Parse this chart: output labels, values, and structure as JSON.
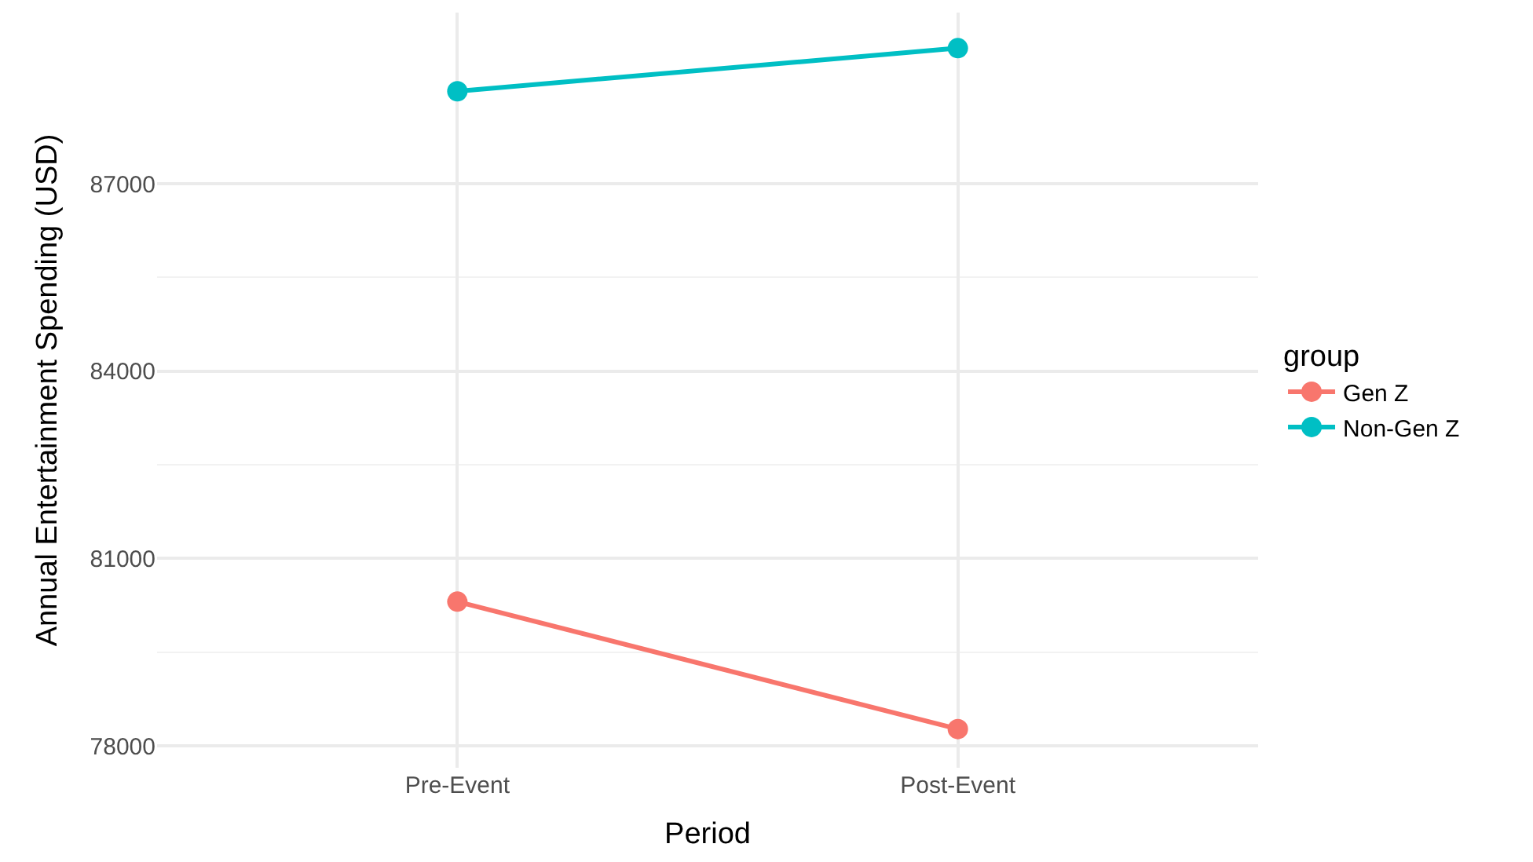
{
  "chart_data": {
    "type": "line",
    "xlabel": "Period",
    "ylabel": "Annual Entertainment Spending (USD)",
    "legend_title": "group",
    "categories": [
      "Pre-Event",
      "Post-Event"
    ],
    "series": [
      {
        "name": "Gen Z",
        "color": "#f8766d",
        "values": [
          80310,
          78270
        ]
      },
      {
        "name": "Non-Gen Z",
        "color": "#00bfc4",
        "values": [
          88480,
          89170
        ]
      }
    ],
    "ylim": [
      77650,
      89740
    ],
    "yticks": [
      78000,
      81000,
      84000,
      87000
    ],
    "grid": true,
    "legend": "right",
    "marker": "circle",
    "line_style": "solid"
  }
}
